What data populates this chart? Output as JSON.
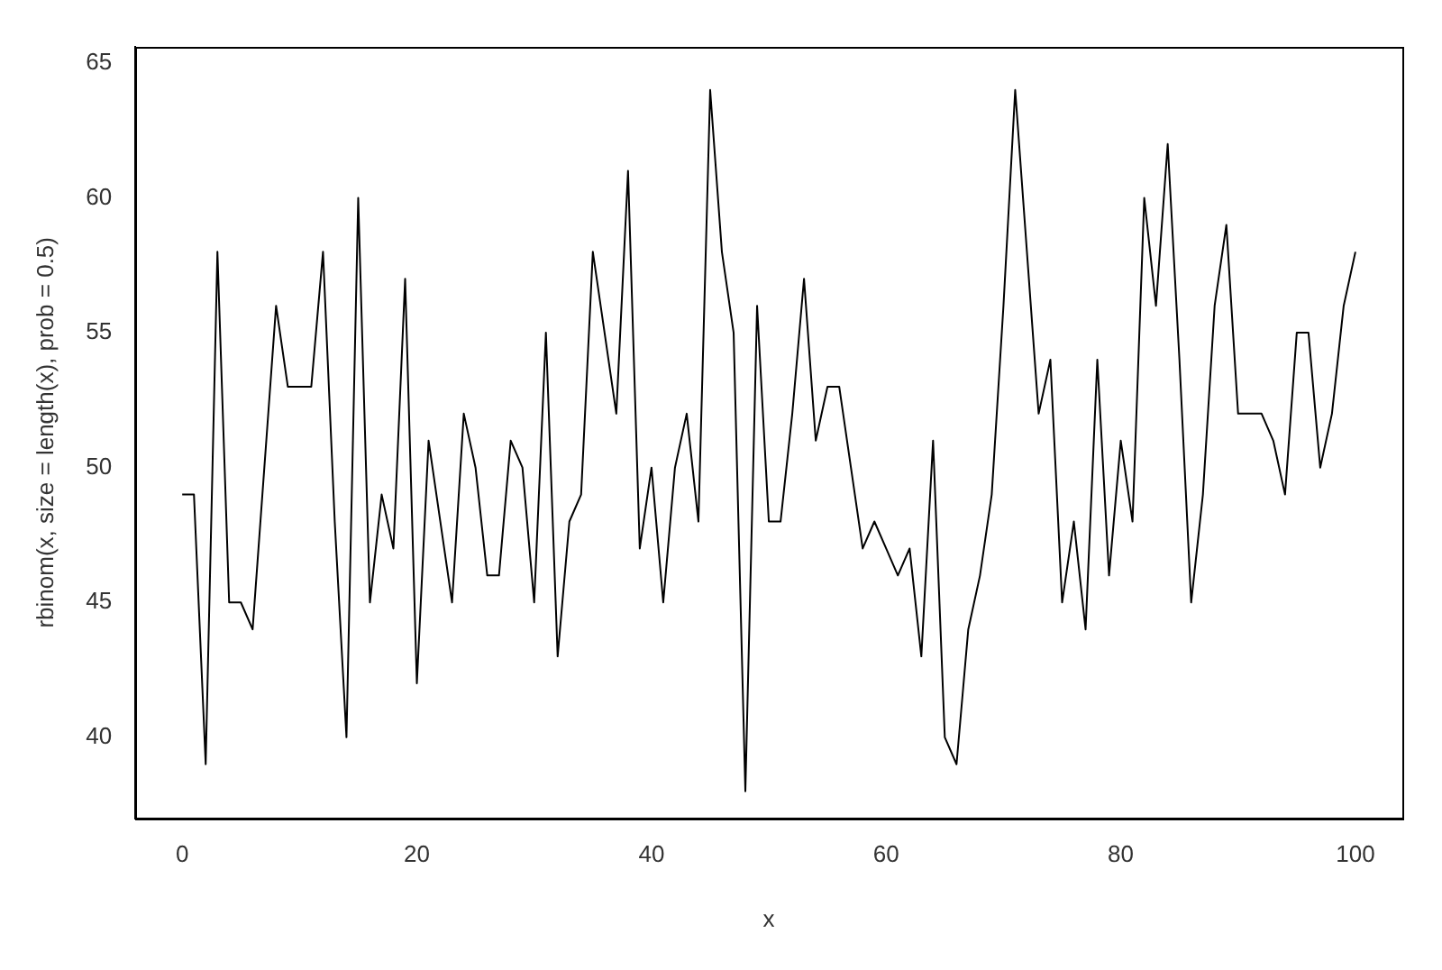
{
  "chart_data": {
    "type": "line",
    "xlabel": "x",
    "ylabel": "rbinom(x, size = length(x), prob = 0.5)",
    "x": [
      0,
      1,
      2,
      3,
      4,
      5,
      6,
      7,
      8,
      9,
      10,
      11,
      12,
      13,
      14,
      15,
      16,
      17,
      18,
      19,
      20,
      21,
      22,
      23,
      24,
      25,
      26,
      27,
      28,
      29,
      30,
      31,
      32,
      33,
      34,
      35,
      36,
      37,
      38,
      39,
      40,
      41,
      42,
      43,
      44,
      45,
      46,
      47,
      48,
      49,
      50,
      51,
      52,
      53,
      54,
      55,
      56,
      57,
      58,
      59,
      60,
      61,
      62,
      63,
      64,
      65,
      66,
      67,
      68,
      69,
      70,
      71,
      72,
      73,
      74,
      75,
      76,
      77,
      78,
      79,
      80,
      81,
      82,
      83,
      84,
      85,
      86,
      87,
      88,
      89,
      90,
      91,
      92,
      93,
      94,
      95,
      96,
      97,
      98,
      99,
      100
    ],
    "values": [
      49,
      49,
      39,
      58,
      45,
      45,
      44,
      50,
      56,
      53,
      53,
      53,
      58,
      48,
      40,
      60,
      45,
      49,
      47,
      57,
      42,
      51,
      48,
      45,
      52,
      50,
      46,
      46,
      51,
      50,
      45,
      55,
      43,
      48,
      49,
      58,
      55,
      52,
      61,
      47,
      50,
      45,
      50,
      52,
      48,
      64,
      58,
      55,
      38,
      56,
      48,
      48,
      52,
      57,
      51,
      53,
      53,
      50,
      47,
      48,
      47,
      46,
      47,
      43,
      51,
      40,
      39,
      44,
      46,
      49,
      56,
      64,
      58,
      52,
      54,
      45,
      48,
      44,
      54,
      46,
      51,
      48,
      60,
      56,
      62,
      54,
      45,
      49,
      56,
      59,
      52,
      52,
      52,
      51,
      49,
      55,
      55,
      50,
      52,
      56,
      58
    ],
    "color": "#000000",
    "marker": "none",
    "line_style": "solid",
    "xlim": [
      -4,
      104
    ],
    "ylim": [
      37,
      65.6
    ],
    "xticks": [
      0,
      20,
      40,
      60,
      80,
      100
    ],
    "yticks": [
      40,
      45,
      50,
      55,
      60,
      65
    ]
  }
}
